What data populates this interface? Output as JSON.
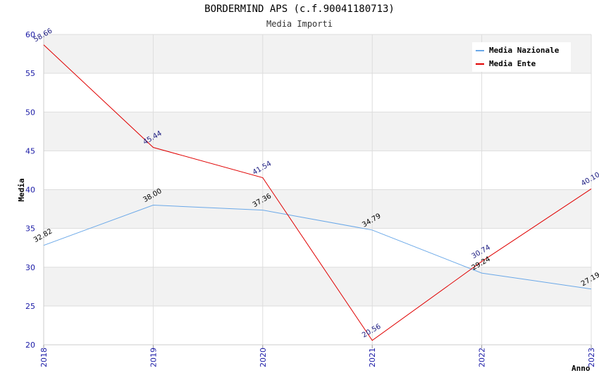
{
  "chart_data": {
    "type": "line",
    "title": "BORDERMIND APS (c.f.90041180713)",
    "subtitle": "Media Importi",
    "xlabel": "Anno",
    "ylabel": "Media",
    "categories": [
      "2018",
      "2019",
      "2020",
      "2021",
      "2022",
      "2023"
    ],
    "ylim": [
      20,
      60
    ],
    "yticks": [
      20,
      25,
      30,
      35,
      40,
      45,
      50,
      55,
      60
    ],
    "series": [
      {
        "name": "Media Nazionale",
        "color": "#6aa8e8",
        "label_color": "#000000",
        "values": [
          32.82,
          38.0,
          37.36,
          34.79,
          29.24,
          27.19
        ],
        "labels": [
          "32.82",
          "38.00",
          "37.36",
          "34.79",
          "29.24",
          "27.19"
        ]
      },
      {
        "name": "Media Ente",
        "color": "#e00000",
        "label_color": "#1a1a80",
        "values": [
          58.66,
          45.44,
          41.54,
          20.56,
          30.74,
          40.1
        ],
        "labels": [
          "58.66",
          "45.44",
          "41.54",
          "20.56",
          "30.74",
          "40.10"
        ]
      }
    ],
    "legend_position": "top-right",
    "grid": true
  }
}
